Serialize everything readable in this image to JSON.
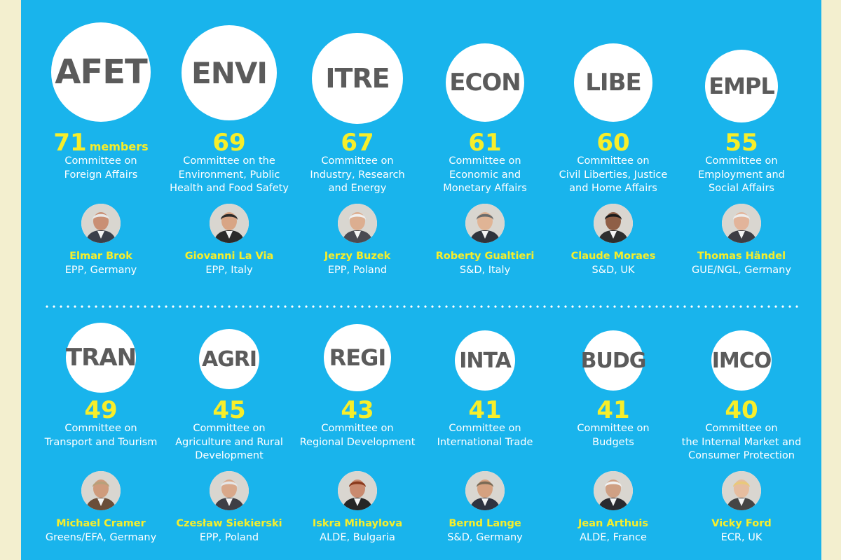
{
  "committees": [
    {
      "code": "AFET",
      "count": "71",
      "unit": "members",
      "desc": [
        "Committee on",
        "Foreign Affairs"
      ],
      "chair": "Elmar Brok",
      "party": "EPP, Germany"
    },
    {
      "code": "ENVI",
      "count": "69",
      "unit": "",
      "desc": [
        "Committee on the",
        "Environment, Public",
        "Health and Food Safety"
      ],
      "chair": "Giovanni La Via",
      "party": "EPP, Italy"
    },
    {
      "code": "ITRE",
      "count": "67",
      "unit": "",
      "desc": [
        "Committee on",
        "Industry, Research",
        "and Energy"
      ],
      "chair": "Jerzy Buzek",
      "party": "EPP, Poland"
    },
    {
      "code": "ECON",
      "count": "61",
      "unit": "",
      "desc": [
        "Committee on",
        "Economic and",
        "Monetary Affairs"
      ],
      "chair": "Roberty Gualtieri",
      "party": "S&D, Italy"
    },
    {
      "code": "LIBE",
      "count": "60",
      "unit": "",
      "desc": [
        "Committee on",
        "Civil Liberties, Justice",
        "and Home Affairs"
      ],
      "chair": "Claude Moraes",
      "party": "S&D, UK"
    },
    {
      "code": "EMPL",
      "count": "55",
      "unit": "",
      "desc": [
        "Committee on",
        "Employment and",
        "Social Affairs"
      ],
      "chair": "Thomas Händel",
      "party": "GUE/NGL, Germany"
    },
    {
      "code": "TRAN",
      "count": "49",
      "unit": "",
      "desc": [
        "Committee on",
        "Transport and Tourism"
      ],
      "chair": "Michael Cramer",
      "party": "Greens/EFA, Germany"
    },
    {
      "code": "AGRI",
      "count": "45",
      "unit": "",
      "desc": [
        "Committee on",
        "Agriculture and Rural",
        "Development"
      ],
      "chair": "Czesław Siekierski",
      "party": "EPP, Poland"
    },
    {
      "code": "REGI",
      "count": "43",
      "unit": "",
      "desc": [
        "Committee on",
        "Regional Development"
      ],
      "chair": "Iskra Mihaylova",
      "party": "ALDE, Bulgaria"
    },
    {
      "code": "INTA",
      "count": "41",
      "unit": "",
      "desc": [
        "Committee on",
        "International Trade"
      ],
      "chair": "Bernd Lange",
      "party": "S&D, Germany"
    },
    {
      "code": "BUDG",
      "count": "41",
      "unit": "",
      "desc": [
        "Committee on",
        "Budgets"
      ],
      "chair": "Jean Arthuis",
      "party": "ALDE, France"
    },
    {
      "code": "IMCO",
      "count": "40",
      "unit": "",
      "desc": [
        "Committee on",
        "the Internal Market and",
        "Consumer Protection"
      ],
      "chair": "Vicky Ford",
      "party": "ECR, UK"
    }
  ]
}
